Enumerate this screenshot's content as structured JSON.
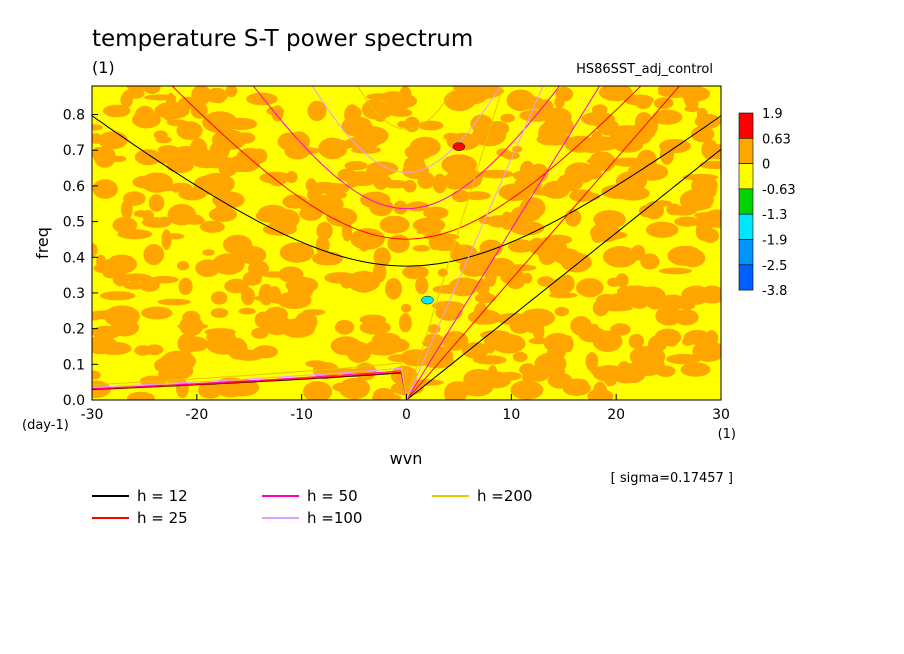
{
  "title": "temperature S-T power spectrum",
  "title_unit": "(1)",
  "run_name": "HS86SST_adj_control",
  "sigma_text": "[ sigma=0.17457 ]",
  "chart_data": {
    "type": "heatmap",
    "title": "temperature S-T power spectrum",
    "xlabel": "wvn",
    "x_unit": "(1)",
    "ylabel": "freq",
    "y_unit": "(day-1)",
    "xlim": [
      -30,
      30
    ],
    "ylim": [
      0,
      0.88
    ],
    "x_ticks": [
      -30,
      -20,
      -10,
      0,
      10,
      20,
      30
    ],
    "x_tick_labels": [
      "-30",
      "-20",
      "-10",
      "0",
      "10",
      "20",
      "30"
    ],
    "y_ticks": [
      0,
      0.1,
      0.2,
      0.3,
      0.4,
      0.5,
      0.6,
      0.7,
      0.8
    ],
    "y_tick_labels": [
      "0.0",
      "0.1",
      "0.2",
      "0.3",
      "0.4",
      "0.5",
      "0.6",
      "0.7",
      "0.8"
    ],
    "colorbar": {
      "levels": [
        -3.8,
        -2.5,
        -1.9,
        -1.3,
        -0.63,
        0,
        0.63,
        1.9
      ],
      "level_labels": [
        "-3.8",
        "-2.5",
        "-1.9",
        "-1.3",
        "-0.63",
        "0",
        "0.63",
        "1.9"
      ],
      "colors": [
        "#0060ff",
        "#0096ff",
        "#00e6ff",
        "#00d400",
        "#ffff00",
        "#ffa500",
        "#ff0000"
      ]
    },
    "field_colors": {
      "low": "#ffff00",
      "high": "#ffa500"
    },
    "dispersion_series": [
      {
        "name": "h = 12",
        "h": 12,
        "color": "#000000"
      },
      {
        "name": "h = 25",
        "h": 25,
        "color": "#ff0000"
      },
      {
        "name": "h = 50",
        "h": 50,
        "color": "#ff00c8"
      },
      {
        "name": "h =100",
        "h": 100,
        "color": "#e1a0ff"
      },
      {
        "name": "h =200",
        "h": 200,
        "color": "#e6c800"
      }
    ],
    "spot_features": [
      {
        "wvn": 5,
        "freq": 0.71,
        "color": "#ff0000"
      },
      {
        "wvn": 2,
        "freq": 0.28,
        "color": "#00e6ff"
      }
    ]
  }
}
